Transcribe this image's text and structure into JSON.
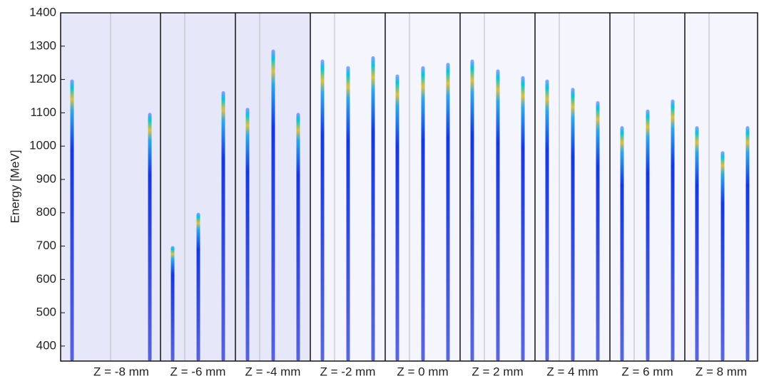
{
  "chart_data": {
    "type": "spectra",
    "ylabel": "Energy [MeV]",
    "ylim": [
      355,
      1400
    ],
    "yticks": [
      400,
      500,
      600,
      700,
      800,
      900,
      1000,
      1100,
      1200,
      1300,
      1400
    ],
    "panels": [
      {
        "label": "Z = -8 mm",
        "values": [
          1200,
          null,
          1100
        ]
      },
      {
        "label": "Z = -6 mm",
        "values": [
          700,
          800,
          1165
        ]
      },
      {
        "label": "Z = -4 mm",
        "values": [
          1115,
          1290,
          1100
        ]
      },
      {
        "label": "Z = -2 mm",
        "values": [
          1260,
          1240,
          1270
        ]
      },
      {
        "label": "Z = 0 mm",
        "values": [
          1215,
          1240,
          1250
        ]
      },
      {
        "label": "Z = 2 mm",
        "values": [
          1260,
          1230,
          1210
        ]
      },
      {
        "label": "Z = 4 mm",
        "values": [
          1200,
          1175,
          1135
        ]
      },
      {
        "label": "Z = 6 mm",
        "values": [
          1060,
          1110,
          1140
        ]
      },
      {
        "label": "Z = 8 mm",
        "values": [
          1060,
          985,
          1060
        ]
      }
    ]
  }
}
